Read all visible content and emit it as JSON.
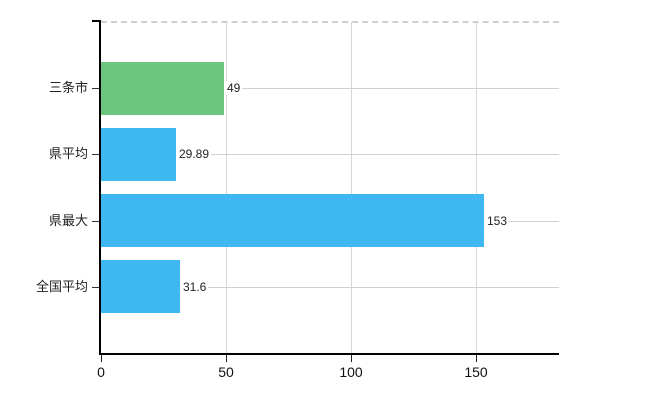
{
  "chart_data": {
    "type": "bar",
    "orientation": "horizontal",
    "title": "",
    "xlabel": "",
    "ylabel": "",
    "categories": [
      "三条市",
      "県平均",
      "県最大",
      "全国平均"
    ],
    "values": [
      49,
      29.89,
      153,
      31.6
    ],
    "value_labels": [
      "49",
      "29.89",
      "153",
      "31.6"
    ],
    "x_ticks": [
      0,
      50,
      100,
      150
    ],
    "x_tick_labels": [
      "0",
      "50",
      "100",
      "150"
    ],
    "xlim": [
      0,
      183.2
    ],
    "grid": true,
    "legend_position": "none",
    "bar_color_indices": [
      "green",
      "blue",
      "blue",
      "blue"
    ]
  },
  "colors": {
    "bar_green": "#6bc77e",
    "bar_blue": "#3fb8f1",
    "axis": "#000000",
    "grid_horizontal": "#ccd5cc",
    "grid_vertical": "#d8d8d2",
    "top_border": "#cfcfcf",
    "text": "#222222"
  }
}
